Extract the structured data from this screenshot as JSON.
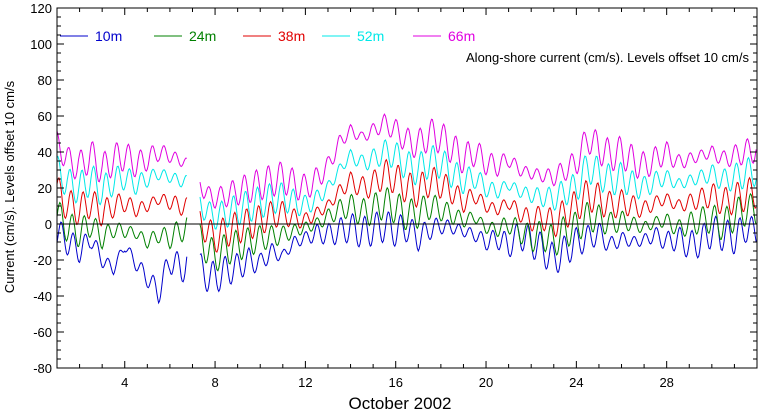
{
  "chart_data": {
    "type": "line",
    "xlabel": "October 2002",
    "ylabel": "Current (cm/s). Levels offset 10 cm/s",
    "annotation": "Along-shore current (cm/s). Levels offset 10 cm/s",
    "xlim": [
      1,
      32
    ],
    "ylim": [
      -80,
      120
    ],
    "xticks": [
      4,
      8,
      12,
      16,
      20,
      24,
      28
    ],
    "yticks": [
      -80,
      -60,
      -40,
      -20,
      0,
      20,
      40,
      60,
      80,
      100,
      120
    ],
    "zero_line": true,
    "gap": [
      6.75,
      7.3
    ],
    "legend_position": "top-left",
    "x": [
      1,
      1.5,
      2,
      2.5,
      3,
      3.5,
      4,
      4.5,
      5,
      5.5,
      6,
      6.5,
      7,
      7.5,
      8,
      8.5,
      9,
      9.5,
      10,
      10.5,
      11,
      11.5,
      12,
      12.5,
      13,
      13.5,
      14,
      14.5,
      15,
      15.5,
      16,
      16.5,
      17,
      17.5,
      18,
      18.5,
      19,
      19.5,
      20,
      20.5,
      21,
      21.5,
      22,
      22.5,
      23,
      23.5,
      24,
      24.5,
      25,
      25.5,
      26,
      26.5,
      27,
      27.5,
      28,
      28.5,
      29,
      29.5,
      30,
      30.5,
      31,
      31.5,
      32
    ],
    "series": [
      {
        "name": "10m",
        "color": "#0000cc",
        "values": [
          -5,
          -10,
          -15,
          -8,
          -20,
          -25,
          -12,
          -22,
          -30,
          -38,
          -20,
          -25,
          -18,
          -28,
          -30,
          -26,
          -24,
          -20,
          -22,
          -15,
          -18,
          -10,
          -8,
          -5,
          -6,
          -4,
          -2,
          -5,
          -3,
          -1,
          -4,
          -2,
          -8,
          -3,
          -1,
          -2,
          -4,
          -6,
          -10,
          -8,
          -12,
          -6,
          -10,
          -14,
          -20,
          -15,
          -10,
          -8,
          -5,
          -12,
          -8,
          -10,
          -9,
          -6,
          -10,
          -8,
          -12,
          -10,
          -4,
          -6,
          -8,
          -2,
          -5
        ]
      },
      {
        "name": "24m",
        "color": "#008000",
        "values": [
          5,
          -2,
          -5,
          0,
          -8,
          -3,
          -4,
          -5,
          -10,
          -6,
          -8,
          -3,
          -2,
          -12,
          -18,
          -14,
          -12,
          -10,
          -8,
          -7,
          -6,
          -4,
          -2,
          0,
          4,
          8,
          10,
          6,
          8,
          12,
          9,
          5,
          6,
          10,
          8,
          5,
          2,
          4,
          -2,
          -3,
          0,
          -4,
          -8,
          -6,
          -10,
          -4,
          -2,
          4,
          3,
          0,
          2,
          0,
          -2,
          1,
          2,
          -3,
          0,
          2,
          3,
          -1,
          5,
          8,
          8
        ]
      },
      {
        "name": "38m",
        "color": "#e00000",
        "values": [
          18,
          10,
          8,
          12,
          6,
          10,
          12,
          8,
          10,
          14,
          12,
          10,
          8,
          -2,
          -8,
          -4,
          -2,
          0,
          2,
          5,
          6,
          3,
          2,
          6,
          10,
          18,
          24,
          20,
          22,
          28,
          25,
          20,
          18,
          24,
          22,
          18,
          12,
          16,
          10,
          8,
          12,
          6,
          2,
          4,
          0,
          6,
          10,
          16,
          14,
          10,
          12,
          10,
          8,
          12,
          14,
          10,
          12,
          14,
          16,
          12,
          14,
          16,
          18
        ]
      },
      {
        "name": "52m",
        "color": "#00e8e8",
        "values": [
          30,
          22,
          20,
          25,
          18,
          24,
          26,
          22,
          25,
          28,
          26,
          24,
          22,
          8,
          4,
          6,
          8,
          10,
          12,
          14,
          15,
          12,
          10,
          14,
          20,
          30,
          38,
          34,
          36,
          40,
          38,
          32,
          30,
          35,
          34,
          28,
          24,
          26,
          20,
          18,
          22,
          18,
          16,
          15,
          14,
          18,
          20,
          32,
          28,
          24,
          26,
          22,
          20,
          24,
          26,
          22,
          24,
          26,
          28,
          24,
          26,
          28,
          30
        ]
      },
      {
        "name": "66m",
        "color": "#e000e0",
        "values": [
          45,
          35,
          32,
          38,
          30,
          36,
          38,
          33,
          36,
          40,
          38,
          35,
          32,
          18,
          14,
          16,
          18,
          20,
          22,
          24,
          26,
          22,
          20,
          25,
          32,
          45,
          52,
          48,
          52,
          56,
          52,
          46,
          44,
          50,
          48,
          42,
          36,
          40,
          34,
          32,
          36,
          30,
          28,
          27,
          26,
          30,
          34,
          48,
          42,
          38,
          40,
          35,
          32,
          36,
          40,
          34,
          36,
          38,
          40,
          36,
          38,
          40,
          42
        ]
      }
    ]
  }
}
